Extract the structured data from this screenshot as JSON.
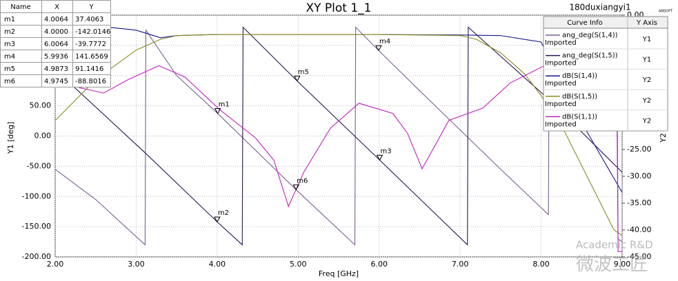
{
  "chart_data": {
    "type": "line",
    "title": "XY Plot 1_1",
    "subtitle": "180duxiangyi1",
    "logo": "ANSOFT",
    "watermark": [
      "Academic R&D",
      "微波工匠"
    ],
    "x_label": "Freq [GHz]",
    "y_label": "Y1 [deg]",
    "y2_label": "Y2",
    "xlim": [
      2,
      9
    ],
    "ylim": [
      -200,
      200
    ],
    "y2lim": [
      -45,
      0
    ],
    "grid": true,
    "xticks": [
      {
        "value": 2,
        "label": "2.00"
      },
      {
        "value": 3,
        "label": "3.00"
      },
      {
        "value": 4,
        "label": "4.00"
      },
      {
        "value": 5,
        "label": "5.00"
      },
      {
        "value": 6,
        "label": "6.00"
      },
      {
        "value": 7,
        "label": "7.00"
      },
      {
        "value": 8,
        "label": "8.00"
      },
      {
        "value": 9,
        "label": "9.00"
      }
    ],
    "yticks": [
      {
        "value": -200,
        "label": "-200.00"
      },
      {
        "value": -150,
        "label": "-150.00"
      },
      {
        "value": -100,
        "label": "-100.00"
      },
      {
        "value": -50,
        "label": "-50.00"
      },
      {
        "value": 0,
        "label": "0.00"
      },
      {
        "value": 50,
        "label": "50.00"
      },
      {
        "value": 100,
        "label": "100.00"
      },
      {
        "value": 150,
        "label": "150.00"
      },
      {
        "value": 200,
        "label": "200.00"
      }
    ],
    "y2ticks": [
      {
        "value": -45,
        "label": "-45.00"
      },
      {
        "value": -40,
        "label": "-40.00"
      },
      {
        "value": -35,
        "label": "-35.00"
      },
      {
        "value": -30,
        "label": "-30.00"
      },
      {
        "value": -25,
        "label": "-25.00"
      },
      {
        "value": -20,
        "label": "-20.00"
      },
      {
        "value": -15,
        "label": "-15.00"
      },
      {
        "value": -10,
        "label": "-10.00"
      },
      {
        "value": -5,
        "label": "-5.00"
      },
      {
        "value": 0,
        "label": "0.00"
      }
    ],
    "legend": {
      "position": "upper right",
      "header": [
        "Curve Info",
        "Y Axis"
      ]
    },
    "series": [
      {
        "name": "ang_deg(S(1,4))",
        "source": "Imported",
        "axis": "Y1",
        "color": "#7a6090",
        "x": [
          2.0,
          2.5,
          3.11,
          3.12,
          3.5,
          4.0064,
          4.9745,
          5.7,
          5.71,
          5.9936,
          6.5,
          7.0,
          7.5,
          8.09,
          8.1,
          8.5,
          8.94,
          8.95,
          9.0
        ],
        "values": [
          -55,
          -105,
          -180,
          175,
          100,
          37.4063,
          -88.8016,
          -180,
          180,
          141.6569,
          75,
          10,
          -55,
          -130,
          180,
          125,
          60,
          -170,
          -175
        ]
      },
      {
        "name": "ang_deg(S(1,5))",
        "source": "Imported",
        "axis": "Y1",
        "color": "#2a1450",
        "x": [
          2.0,
          3.12,
          4.0,
          4.31,
          4.32,
          4.9873,
          6.0064,
          7.09,
          7.1,
          8.1,
          9.0
        ],
        "values": [
          110,
          -29,
          -142.0146,
          -180,
          180,
          91.1416,
          -39.7772,
          -180,
          180,
          60,
          -60
        ]
      },
      {
        "name": "dB(S(1,4))",
        "source": "Imported",
        "axis": "Y2",
        "color": "#14148a",
        "x": [
          2.0,
          2.5,
          3.0,
          3.3,
          3.5,
          4.0,
          5.0,
          6.0,
          7.0,
          7.5,
          8.0,
          8.5,
          9.0
        ],
        "values": [
          -1.5,
          -2,
          -2.8,
          -4.2,
          -3.8,
          -3.6,
          -3.6,
          -3.6,
          -3.7,
          -3.8,
          -5,
          -20,
          -33
        ]
      },
      {
        "name": "dB(S(1,5))",
        "source": "Imported",
        "axis": "Y2",
        "color": "#8a8a20",
        "x": [
          2.0,
          2.5,
          3.0,
          3.3,
          3.5,
          4.0,
          5.0,
          6.0,
          7.0,
          7.2,
          7.5,
          7.8,
          8.0,
          8.3,
          8.6,
          8.9,
          9.0
        ],
        "values": [
          -19.6,
          -12,
          -6.5,
          -4.5,
          -3.8,
          -3.6,
          -3.6,
          -3.6,
          -3.8,
          -4.5,
          -7,
          -11,
          -15,
          -22,
          -31,
          -40,
          -41
        ]
      },
      {
        "name": "dB(S(1,1))",
        "source": "Imported",
        "axis": "Y2",
        "color": "#c020c0",
        "x": [
          2.0,
          2.3,
          2.6,
          2.9,
          3.28,
          3.6,
          4.04,
          4.47,
          4.7,
          4.88,
          5.07,
          5.4,
          5.75,
          6.17,
          6.35,
          6.53,
          6.7,
          6.86,
          7.28,
          7.62,
          8.13,
          8.5,
          8.93,
          8.95,
          9.0
        ],
        "values": [
          -11.3,
          -13.5,
          -14.5,
          -12,
          -9.4,
          -11.5,
          -17.7,
          -22.8,
          -27,
          -35.6,
          -29.2,
          -21,
          -16.4,
          -18.3,
          -22,
          -28.6,
          -24,
          -19.6,
          -17.3,
          -12.6,
          -8.7,
          -7,
          -6.5,
          -44,
          -44
        ]
      }
    ],
    "markers": {
      "columns": [
        "Name",
        "X",
        "Y"
      ],
      "rows": [
        [
          "m1",
          "4.0064",
          "37.4063"
        ],
        [
          "m2",
          "4.0000",
          "-142.0146"
        ],
        [
          "m3",
          "6.0064",
          "-39.7772"
        ],
        [
          "m4",
          "5.9936",
          "141.6569"
        ],
        [
          "m5",
          "4.9873",
          "91.1416"
        ],
        [
          "m6",
          "4.9745",
          "-88.8016"
        ]
      ]
    }
  }
}
